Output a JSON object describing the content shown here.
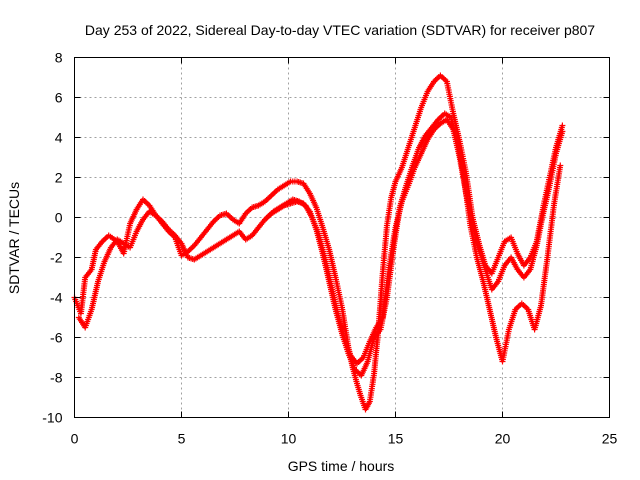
{
  "chart_data": {
    "type": "scatter",
    "title": "Day 253 of 2022, Sidereal Day-to-day VTEC variation (SDTVAR) for receiver p807",
    "xlabel": "GPS time / hours",
    "ylabel": "SDTVAR / TECUs",
    "xlim": [
      0,
      25
    ],
    "ylim": [
      -10,
      8
    ],
    "xticks": [
      0,
      5,
      10,
      15,
      20,
      25
    ],
    "yticks": [
      -10,
      -8,
      -6,
      -4,
      -2,
      0,
      2,
      4,
      6,
      8
    ],
    "grid": true,
    "marker": "plus",
    "color": "#ff0000",
    "series": [
      {
        "x": [
          0.0,
          0.3,
          0.5,
          0.8,
          1.0,
          1.3,
          1.6,
          2.0,
          2.3,
          2.6,
          2.9,
          3.2,
          3.5,
          3.8,
          4.1,
          4.4,
          4.7,
          5.0,
          5.3,
          5.6,
          5.9,
          6.2,
          6.5,
          6.8,
          7.1,
          7.4,
          7.7,
          8.0,
          8.3,
          8.6,
          8.9,
          9.2,
          9.5,
          9.8,
          10.1,
          10.4,
          10.7,
          11.0,
          11.3,
          11.6,
          11.9,
          12.2,
          12.5,
          12.8,
          13.0,
          13.2,
          13.4,
          13.6,
          13.8,
          14.0,
          14.2,
          14.4,
          14.6,
          14.8,
          15.0,
          15.3,
          15.6,
          15.9,
          16.2,
          16.5,
          16.8,
          17.1,
          17.4,
          17.7,
          18.0,
          18.3,
          18.6,
          18.9,
          19.2,
          19.5,
          19.8,
          20.1,
          20.4,
          20.7,
          21.0,
          21.3,
          21.6,
          21.9,
          22.2,
          22.5,
          22.8
        ],
        "y": [
          -4.0,
          -4.8,
          -3.0,
          -2.6,
          -1.6,
          -1.2,
          -0.9,
          -1.2,
          -1.8,
          -0.3,
          0.4,
          0.9,
          0.6,
          0.1,
          -0.3,
          -0.7,
          -1.0,
          -1.9,
          -1.7,
          -1.4,
          -1.0,
          -0.6,
          -0.2,
          0.1,
          0.2,
          -0.1,
          -0.3,
          0.2,
          0.5,
          0.6,
          0.8,
          1.1,
          1.4,
          1.6,
          1.8,
          1.8,
          1.7,
          1.2,
          0.5,
          -0.5,
          -1.6,
          -3.0,
          -4.5,
          -6.5,
          -7.5,
          -8.3,
          -9.0,
          -9.6,
          -9.2,
          -7.8,
          -5.6,
          -2.8,
          -0.4,
          1.0,
          1.8,
          2.5,
          3.5,
          4.5,
          5.5,
          6.3,
          6.8,
          7.1,
          6.8,
          5.2,
          3.8,
          2.2,
          0.0,
          -1.3,
          -2.4,
          -2.8,
          -2.0,
          -1.2,
          -1.0,
          -1.8,
          -2.4,
          -2.0,
          -1.2,
          0.5,
          2.0,
          3.5,
          4.6
        ]
      },
      {
        "x": [
          0.2,
          0.5,
          0.8,
          1.1,
          1.4,
          1.7,
          2.0,
          2.3,
          2.6,
          2.9,
          3.2,
          3.5,
          3.8,
          4.1,
          4.4,
          4.7,
          5.0,
          5.3,
          5.6,
          5.9,
          6.2,
          6.5,
          6.8,
          7.1,
          7.4,
          7.7,
          8.0,
          8.3,
          8.6,
          8.9,
          9.2,
          9.5,
          9.8,
          10.1,
          10.4,
          10.7,
          11.0,
          11.3,
          11.6,
          11.9,
          12.2,
          12.5,
          12.8,
          13.1,
          13.4,
          13.7,
          14.0,
          14.3,
          14.6,
          14.9,
          15.2,
          15.5,
          15.8,
          16.1,
          16.4,
          16.7,
          17.0,
          17.3,
          17.6,
          17.9,
          18.2,
          18.5,
          18.8,
          19.1,
          19.4,
          19.7,
          20.0,
          20.3,
          20.6,
          20.9,
          21.2,
          21.5,
          21.8,
          22.1,
          22.4,
          22.7
        ],
        "y": [
          -5.0,
          -5.5,
          -4.6,
          -3.2,
          -2.2,
          -1.5,
          -1.1,
          -1.3,
          -1.5,
          -0.7,
          -0.1,
          0.3,
          0.1,
          -0.2,
          -0.6,
          -0.9,
          -1.3,
          -2.0,
          -2.1,
          -1.9,
          -1.7,
          -1.5,
          -1.3,
          -1.1,
          -0.9,
          -0.7,
          -1.1,
          -0.9,
          -0.5,
          -0.1,
          0.2,
          0.4,
          0.6,
          0.7,
          0.8,
          0.7,
          0.3,
          -0.6,
          -1.8,
          -3.2,
          -4.6,
          -5.8,
          -6.8,
          -7.6,
          -7.9,
          -7.2,
          -6.0,
          -5.6,
          -4.0,
          -1.6,
          0.5,
          1.6,
          2.6,
          3.5,
          4.1,
          4.5,
          4.9,
          5.2,
          5.0,
          3.8,
          2.0,
          -0.4,
          -2.0,
          -3.2,
          -4.6,
          -6.0,
          -7.2,
          -5.6,
          -4.6,
          -4.3,
          -4.6,
          -5.6,
          -4.4,
          -2.0,
          0.6,
          2.6
        ]
      },
      {
        "x": [
          9.0,
          9.3,
          9.6,
          9.9,
          10.2,
          10.5,
          10.8,
          11.1,
          11.4,
          11.7,
          12.0,
          12.3,
          12.6,
          12.9,
          13.2,
          13.5,
          13.8,
          14.1,
          14.4,
          14.7,
          15.0,
          15.3,
          15.6,
          15.9,
          16.2,
          16.5,
          16.8,
          17.1,
          17.4,
          17.7,
          18.0,
          18.3,
          18.6,
          18.9,
          19.2,
          19.5,
          19.8,
          20.1,
          20.4,
          20.7,
          21.0,
          21.3,
          21.6,
          21.9,
          22.2,
          22.5,
          22.8
        ],
        "y": [
          0.0,
          0.3,
          0.5,
          0.7,
          0.9,
          0.8,
          0.6,
          0.0,
          -0.8,
          -2.0,
          -3.4,
          -4.8,
          -6.0,
          -6.9,
          -7.3,
          -7.0,
          -6.2,
          -5.5,
          -5.0,
          -2.5,
          -0.5,
          0.8,
          1.6,
          2.5,
          3.2,
          3.9,
          4.4,
          4.7,
          4.9,
          4.4,
          3.0,
          1.2,
          -0.4,
          -1.6,
          -2.6,
          -3.6,
          -3.2,
          -2.4,
          -2.0,
          -2.6,
          -3.0,
          -2.6,
          -1.4,
          0.2,
          1.6,
          3.2,
          4.3
        ]
      }
    ]
  }
}
